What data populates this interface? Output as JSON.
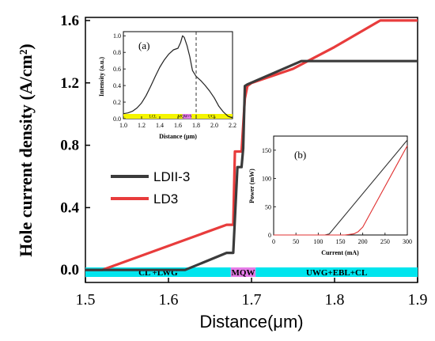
{
  "chart_data": [
    {
      "type": "line",
      "title": "",
      "xlabel": "Distance(μm)",
      "ylabel": "Hole current density (A/cm²)",
      "xlim": [
        1.5,
        1.9
      ],
      "ylim": [
        -0.08,
        1.62
      ],
      "xticks": [
        "1.5",
        "1.6",
        "1.7",
        "1.8",
        "1.9"
      ],
      "yticks": [
        "0.0",
        "0.4",
        "0.8",
        "1.2",
        "1.6"
      ],
      "grid": false,
      "legend": "middle-left",
      "series": [
        {
          "name": "LDII-3",
          "color": "#3b3b3b",
          "x": [
            1.5,
            1.62,
            1.67,
            1.678,
            1.683,
            1.685,
            1.688,
            1.69,
            1.692,
            1.695,
            1.76,
            1.9
          ],
          "y": [
            0.0,
            0.0,
            0.11,
            0.11,
            0.66,
            0.66,
            0.66,
            0.78,
            1.18,
            1.19,
            1.34,
            1.34
          ]
        },
        {
          "name": "LD3",
          "color": "#e83c3c",
          "x": [
            1.5,
            1.52,
            1.67,
            1.678,
            1.68,
            1.686,
            1.688,
            1.692,
            1.695,
            1.7,
            1.75,
            1.8,
            1.855,
            1.9
          ],
          "y": [
            0.0,
            0.0,
            0.29,
            0.29,
            0.76,
            0.76,
            0.76,
            1.1,
            1.18,
            1.2,
            1.29,
            1.43,
            1.6,
            1.6
          ]
        }
      ],
      "bands": [
        {
          "label": "CL +LWG",
          "x": [
            1.5,
            1.675
          ],
          "color": "#00e5ee"
        },
        {
          "label": "MQW",
          "x": [
            1.675,
            1.705
          ],
          "color": "#e57ce8"
        },
        {
          "label": "UWG+EBL+CL",
          "x": [
            1.705,
            1.9
          ],
          "color": "#00e5ee"
        }
      ]
    },
    {
      "type": "line",
      "title": "(a)",
      "xlabel": "Distance (μm)",
      "ylabel": "Intensity (a.u.)",
      "xlim": [
        1.0,
        2.2
      ],
      "ylim": [
        0.0,
        1.05
      ],
      "xticks": [
        "1.0",
        "1.2",
        "1.4",
        "1.6",
        "1.8",
        "2.0",
        "2.2"
      ],
      "yticks": [
        "0.0",
        "0.2",
        "0.4",
        "0.6",
        "0.8",
        "1.0"
      ],
      "dashed_line_x": 1.8,
      "series": [
        {
          "name": "",
          "color": "#222222",
          "x": [
            1.0,
            1.05,
            1.1,
            1.15,
            1.2,
            1.25,
            1.3,
            1.35,
            1.4,
            1.45,
            1.5,
            1.55,
            1.6,
            1.63,
            1.65,
            1.67,
            1.7,
            1.73,
            1.76,
            1.8,
            1.85,
            1.9,
            1.95,
            2.0,
            2.05,
            2.1,
            2.15,
            2.2
          ],
          "y": [
            0.06,
            0.07,
            0.09,
            0.13,
            0.19,
            0.28,
            0.39,
            0.51,
            0.62,
            0.71,
            0.78,
            0.83,
            0.85,
            0.92,
            1.0,
            0.98,
            0.88,
            0.75,
            0.58,
            0.51,
            0.46,
            0.4,
            0.33,
            0.25,
            0.15,
            0.08,
            0.03,
            0.01
          ]
        }
      ],
      "bands": [
        {
          "label": "LCL",
          "x": [
            1.0,
            1.65
          ],
          "color": "#f5f500"
        },
        {
          "label": "MQW+WG",
          "x": [
            1.65,
            1.75
          ],
          "color": "#e57ce8"
        },
        {
          "label": "UCL",
          "x": [
            1.75,
            2.2
          ],
          "color": "#f5f500"
        }
      ]
    },
    {
      "type": "line",
      "title": "(b)",
      "xlabel": "Current (mA)",
      "ylabel": "Power (mW)",
      "xlim": [
        0,
        300
      ],
      "ylim": [
        0,
        175
      ],
      "xticks": [
        "0",
        "50",
        "100",
        "150",
        "200",
        "250",
        "300"
      ],
      "yticks": [
        "0",
        "50",
        "100",
        "150"
      ],
      "series": [
        {
          "name": "",
          "color": "#333333",
          "x": [
            0,
            100,
            115,
            125,
            300
          ],
          "y": [
            0,
            0,
            0,
            2,
            168
          ]
        },
        {
          "name": "",
          "color": "#e03030",
          "x": [
            0,
            160,
            180,
            190,
            200,
            300
          ],
          "y": [
            0,
            0,
            2,
            6,
            14,
            158
          ]
        }
      ]
    }
  ]
}
